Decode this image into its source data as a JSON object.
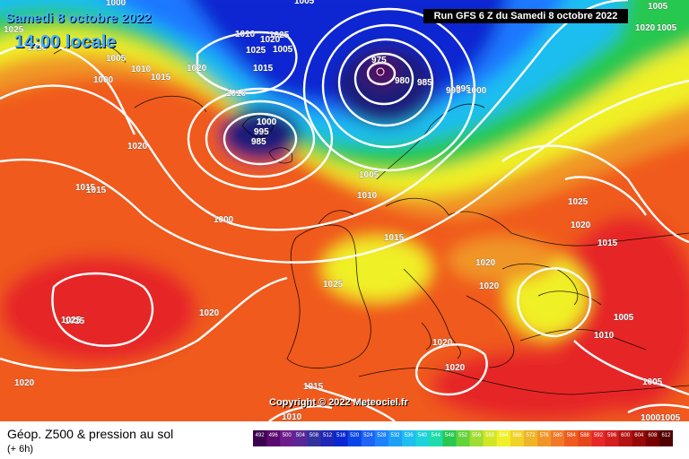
{
  "header": {
    "date": "Samedi 8 octobre 2022",
    "time": "14:00 locale",
    "run": "Run GFS 6 Z du Samedi 8 octobre 2022"
  },
  "copyright": "Copyright © 2022 Meteociel.fr",
  "footer": {
    "title": "Géop. Z500 & pression au sol",
    "subtitle": "(+ 6h)"
  },
  "colors": {
    "purple": "#5a0a5a",
    "navy": "#1a1a7a",
    "blue": "#0a28d2",
    "light_blue": "#1e78ff",
    "cyan": "#1ebef0",
    "green": "#28c850",
    "yellow": "#f0f028",
    "orange": "#f09628",
    "red_orange": "#f05a1e",
    "red": "#e62828"
  },
  "scale": [
    "492",
    "496",
    "500",
    "504",
    "508",
    "512",
    "516",
    "520",
    "524",
    "528",
    "532",
    "536",
    "540",
    "544",
    "548",
    "552",
    "556",
    "560",
    "564",
    "568",
    "572",
    "576",
    "580",
    "584",
    "588",
    "592",
    "596",
    "600",
    "604",
    "608",
    "612"
  ],
  "pressure_labels": [
    "1000",
    "1005",
    "1010",
    "1015",
    "1020",
    "1025",
    "1020",
    "1010",
    "1015",
    "1005",
    "1000",
    "1005",
    "1015",
    "1000",
    "1010",
    "1025",
    "975",
    "980",
    "985",
    "990",
    "995",
    "1000",
    "1000",
    "995",
    "985",
    "1005",
    "1010",
    "1015",
    "1025",
    "1020",
    "1020",
    "1020",
    "1025",
    "1020",
    "1020",
    "1015",
    "1010",
    "1005",
    "1000",
    "1005",
    "1025",
    "1020",
    "1015",
    "1005",
    "1010",
    "1005",
    "1005",
    "1020",
    "1025",
    "1020",
    "1020",
    "1020",
    "1000",
    "1015",
    "1025"
  ],
  "alt_text": "1000"
}
